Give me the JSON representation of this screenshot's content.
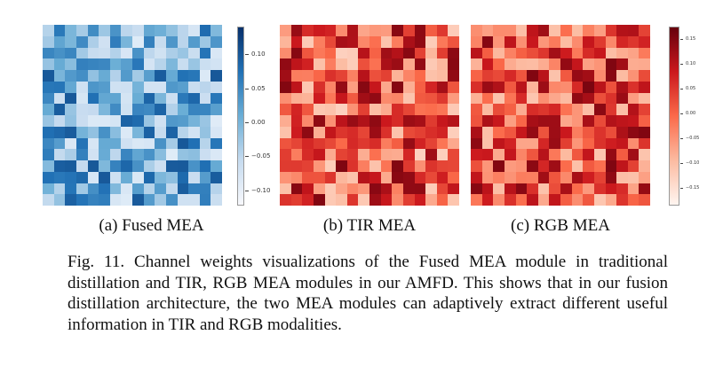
{
  "panels": [
    {
      "caption": "(a) Fused MEA",
      "colorbar_ticks": [
        "0.10",
        "0.05",
        "0.00",
        "−0.05",
        "−0.10"
      ],
      "colormap": "Blues"
    },
    {
      "caption": "(b) TIR MEA",
      "colorbar_ticks": [],
      "colormap": "Reds"
    },
    {
      "caption": "(c) RGB MEA",
      "colorbar_ticks": [
        "0.15",
        "0.10",
        "0.05",
        "0.00",
        "−0.05",
        "−0.10",
        "−0.15"
      ],
      "colormap": "Reds"
    }
  ],
  "figure_caption": "Fig. 11.  Channel weights visualizations of the Fused MEA module in traditional distillation and TIR, RGB MEA modules in our AMFD. This shows that in our fusion distillation architecture, the two MEA modules can adaptively extract different useful information in TIR and RGB modalities."
}
